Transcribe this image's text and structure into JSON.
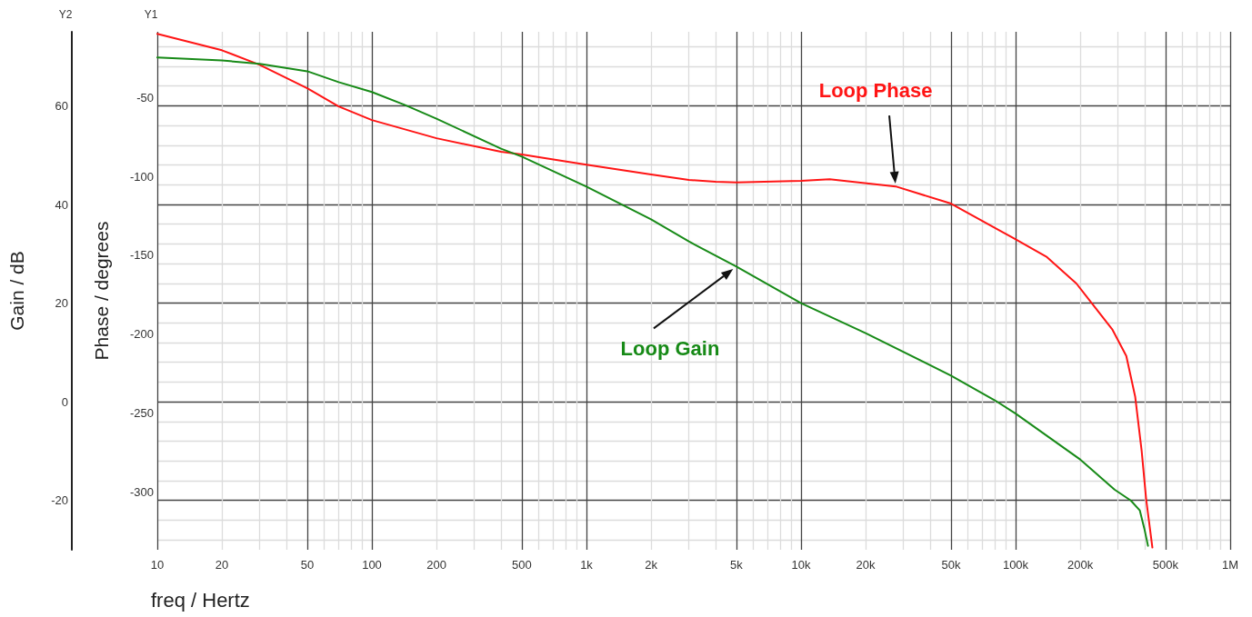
{
  "chart_data": {
    "type": "line",
    "xlabel": "freq / Hertz",
    "ylabel": "Phase / degrees",
    "y2label": "Gain / dB",
    "annotations": [
      "Y2",
      "Y1"
    ],
    "log": "x",
    "grid": true,
    "marker": "none",
    "line_style": "solid",
    "xlim": [
      10,
      1000000
    ],
    "xticks": [
      10,
      20,
      {
        "value": 30,
        "label": null
      },
      {
        "value": 40,
        "label": null
      },
      50,
      {
        "value": 60,
        "label": null
      },
      {
        "value": 70,
        "label": null
      },
      {
        "value": 80,
        "label": null
      },
      {
        "value": 90,
        "label": null
      },
      100,
      200,
      {
        "value": 300,
        "label": null
      },
      {
        "value": 400,
        "label": null
      },
      500,
      {
        "value": 600,
        "label": null
      },
      {
        "value": 700,
        "label": null
      },
      {
        "value": 800,
        "label": null
      },
      {
        "value": 900,
        "label": null
      },
      {
        "value": 1000,
        "label": "1k"
      },
      {
        "value": 2000,
        "label": "2k"
      },
      {
        "value": 3000,
        "label": null
      },
      {
        "value": 4000,
        "label": null
      },
      {
        "value": 5000,
        "label": "5k"
      },
      {
        "value": 6000,
        "label": null
      },
      {
        "value": 7000,
        "label": null
      },
      {
        "value": 8000,
        "label": null
      },
      {
        "value": 9000,
        "label": null
      },
      {
        "value": 10000,
        "label": "10k"
      },
      {
        "value": 20000,
        "label": "20k"
      },
      {
        "value": 30000,
        "label": null
      },
      {
        "value": 40000,
        "label": null
      },
      {
        "value": 50000,
        "label": "50k"
      },
      {
        "value": 60000,
        "label": null
      },
      {
        "value": 70000,
        "label": null
      },
      {
        "value": 80000,
        "label": null
      },
      {
        "value": 90000,
        "label": null
      },
      {
        "value": 100000,
        "label": "100k"
      },
      {
        "value": 200000,
        "label": "200k"
      },
      {
        "value": 300000,
        "label": null
      },
      {
        "value": 400000,
        "label": null
      },
      {
        "value": 500000,
        "label": "500k"
      },
      {
        "value": 600000,
        "label": null
      },
      {
        "value": 700000,
        "label": null
      },
      {
        "value": 800000,
        "label": null
      },
      {
        "value": 900000,
        "label": null
      },
      {
        "value": 1000000,
        "label": "1M"
      }
    ],
    "ylim": [
      -331,
      -3
    ],
    "yticks": [
      -300,
      -250,
      -200,
      -150,
      -100,
      -50
    ],
    "y2lim": [
      -30,
      75
    ],
    "y2ticks": [
      {
        "value": -28,
        "label": null
      },
      {
        "value": -24,
        "label": null
      },
      -20,
      {
        "value": -16,
        "label": null
      },
      {
        "value": -12,
        "label": null
      },
      {
        "value": -8,
        "label": null
      },
      {
        "value": -4,
        "label": null
      },
      0,
      {
        "value": 4,
        "label": null
      },
      {
        "value": 8,
        "label": null
      },
      {
        "value": 12,
        "label": null
      },
      {
        "value": 16,
        "label": null
      },
      20,
      {
        "value": 24,
        "label": null
      },
      {
        "value": 28,
        "label": null
      },
      {
        "value": 32,
        "label": null
      },
      {
        "value": 36,
        "label": null
      },
      40,
      {
        "value": 44,
        "label": null
      },
      {
        "value": 48,
        "label": null
      },
      {
        "value": 52,
        "label": null
      },
      {
        "value": 56,
        "label": null
      },
      60,
      {
        "value": 64,
        "label": null
      },
      {
        "value": 68,
        "label": null
      },
      {
        "value": 72,
        "label": null
      }
    ],
    "series": [
      {
        "name": "Loop Phase",
        "color": "#ff1414",
        "x": [
          10,
          20,
          30,
          50,
          70,
          100,
          200,
          400,
          500,
          1000,
          2000,
          3000,
          4000,
          5000,
          10000,
          13600,
          27600,
          50000,
          97500,
          140000,
          192000,
          220000,
          283000,
          328000,
          361000,
          387000,
          406000,
          434000
        ],
        "values": [
          -4.3,
          -14.7,
          -23.9,
          -38.8,
          -50.3,
          -58.9,
          -70.4,
          -79,
          -80.7,
          -87.1,
          -93.4,
          -96.8,
          -98,
          -98.4,
          -97.4,
          -96.3,
          -100.9,
          -111.8,
          -133.6,
          -145.7,
          -162.4,
          -172.7,
          -191.7,
          -208.3,
          -234.2,
          -268.7,
          -299.1,
          -329.6
        ]
      },
      {
        "name": "Loop Gain",
        "color": "#178a17",
        "axis": "y2",
        "x": [
          10,
          20,
          30,
          50,
          70,
          100,
          142,
          200,
          400,
          500,
          1000,
          2000,
          3000,
          5000,
          10000,
          20000,
          50000,
          80000,
          100000,
          200000,
          289000,
          344000,
          379000,
          398000,
          414000
        ],
        "values": [
          69.8,
          69.2,
          68.5,
          67,
          64.8,
          62.8,
          60.2,
          57.4,
          51.3,
          49.7,
          43.6,
          37,
          32.5,
          27.4,
          20,
          13.9,
          5.3,
          0.3,
          -2.4,
          -11.7,
          -17.8,
          -20,
          -22,
          -25.7,
          -29.2
        ]
      }
    ]
  }
}
